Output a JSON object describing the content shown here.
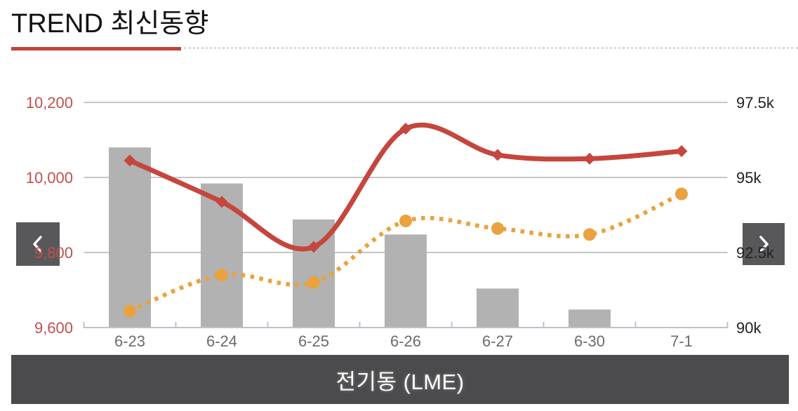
{
  "header": {
    "title": "TREND 최신동향"
  },
  "nav": {
    "prev_icon": "chevron-left",
    "next_icon": "chevron-right"
  },
  "footer": {
    "label": "전기동 (LME)"
  },
  "colors": {
    "accent_red": "#c2423a",
    "line_red": "#c5463d",
    "line_orange": "#e9a23f",
    "bar_gray": "#b2b2b2",
    "grid": "#c6c6c6",
    "axis_line": "#b9c3cd",
    "x_label": "#6b6b6b",
    "left_axis_label": "#c1504c",
    "right_axis_label": "#222222",
    "footer_bg": "#4b4a4c",
    "footer_text": "#ffffff",
    "nav_bg": "#58585a",
    "dotted_rule": "#d9d9d9"
  },
  "chart_data": {
    "type": "mixed",
    "title": "전기동 (LME)",
    "categories": [
      "6-23",
      "6-24",
      "6-25",
      "6-26",
      "6-27",
      "6-30",
      "7-1"
    ],
    "series": [
      {
        "name": "gray-bars",
        "type": "bar",
        "axis": "right",
        "values": [
          96.0,
          94.8,
          93.6,
          93.1,
          91.3,
          90.6,
          null
        ]
      },
      {
        "name": "red-solid-line",
        "type": "line",
        "axis": "left",
        "style": "solid",
        "marker": "diamond",
        "values": [
          10045,
          9935,
          9815,
          10130,
          10060,
          10050,
          10070
        ]
      },
      {
        "name": "orange-dotted-line",
        "type": "line",
        "axis": "right",
        "style": "dotted",
        "marker": "circle",
        "values": [
          90.55,
          91.75,
          91.5,
          93.55,
          93.3,
          93.1,
          94.45
        ]
      }
    ],
    "left_axis": {
      "min": 9600,
      "max": 10200,
      "ticks": [
        "10,200",
        "10,000",
        "9,800",
        "9,600"
      ],
      "tick_values": [
        10200,
        10000,
        9800,
        9600
      ]
    },
    "right_axis": {
      "min": 90,
      "max": 97.5,
      "ticks": [
        "97.5k",
        "95k",
        "92.5k",
        "90k"
      ],
      "tick_values": [
        97.5,
        95,
        92.5,
        90
      ]
    },
    "grid": true,
    "legend": false
  }
}
